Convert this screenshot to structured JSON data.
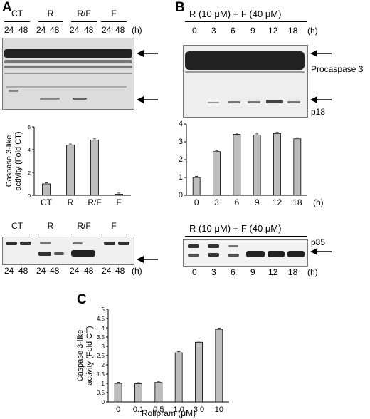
{
  "panels": {
    "A": "A",
    "B": "B",
    "C": "C"
  },
  "units": {
    "h": "(h)"
  },
  "A": {
    "groups": [
      "CT",
      "R",
      "R/F",
      "F"
    ],
    "times": [
      "24",
      "48"
    ]
  },
  "B": {
    "treatment": "R (10 μM) + F (40 μM)",
    "times": [
      "0",
      "3",
      "6",
      "9",
      "12",
      "18"
    ],
    "procaspase_label": "Procaspase 3",
    "p18_label": "p18",
    "p85_label": "p85"
  },
  "chart_data": [
    {
      "id": "A-bar",
      "type": "bar",
      "categories": [
        "CT",
        "R",
        "R/F",
        "F"
      ],
      "values": [
        1.0,
        4.4,
        4.85,
        0.1
      ],
      "ylabel": "Caspase 3-like activity (Fold CT)",
      "ylim": [
        0,
        6
      ],
      "yticks": [
        "0",
        "2",
        "4",
        "6"
      ]
    },
    {
      "id": "B-bar",
      "type": "bar",
      "categories": [
        "0",
        "3",
        "6",
        "9",
        "12",
        "18"
      ],
      "values": [
        1.0,
        2.45,
        3.42,
        3.38,
        3.47,
        3.17
      ],
      "xlabel": "(h)",
      "ylim": [
        0,
        4
      ],
      "yticks": [
        "0",
        "1",
        "2",
        "3",
        "4"
      ]
    },
    {
      "id": "C-bar",
      "type": "bar",
      "categories": [
        "0",
        "0.1",
        "0.5",
        "1.0",
        "3.0",
        "10"
      ],
      "values": [
        1.0,
        0.98,
        1.05,
        2.65,
        3.22,
        3.92
      ],
      "xlabel": "Rolipram (μM)",
      "ylabel": "Caspase 3-like activity (Fold CT)",
      "ylim": [
        0,
        5
      ],
      "yticks": [
        "0",
        "0.5",
        "1",
        "1.5",
        "2",
        "2.5",
        "3",
        "3.5",
        "4",
        "4.5",
        "5"
      ]
    }
  ]
}
